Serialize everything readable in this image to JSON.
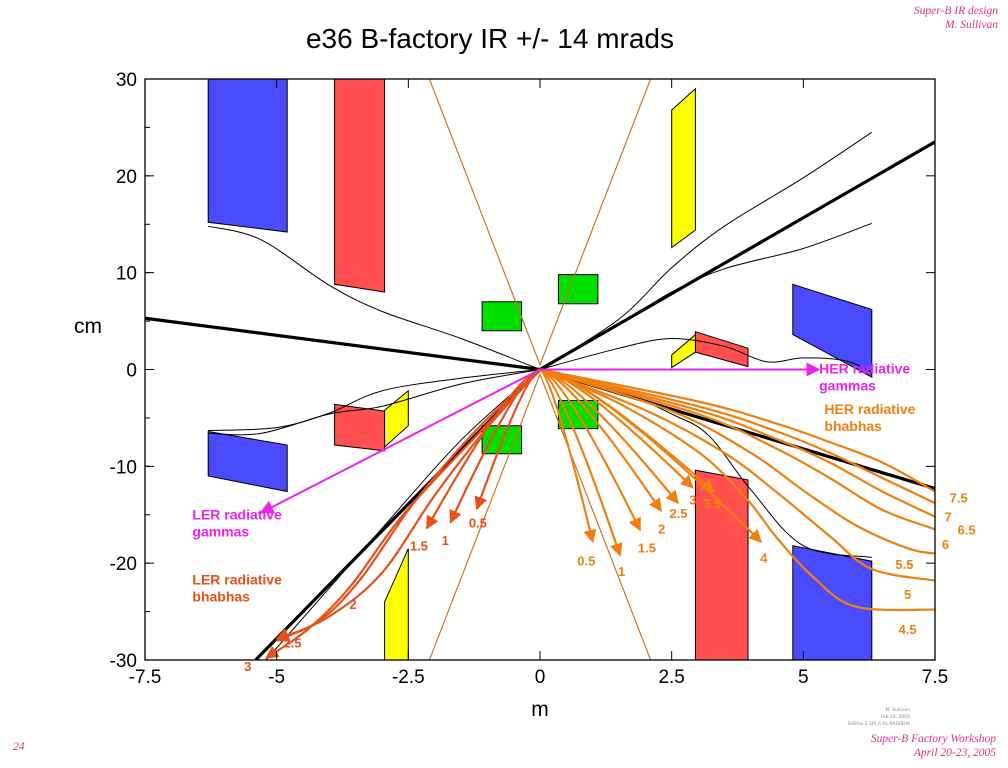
{
  "slide": {
    "header_line1": "Super-B IR design",
    "header_line2": "M. Sullivan",
    "footer_line1": "Super-B Factory Workshop",
    "footer_line2": "April 20-23, 2005",
    "page_number": "24",
    "stamp_lines": [
      "M. Sullivan",
      "Feb 24, 2004",
      "SoBfoe 2 SM_6 RL RAD/BHA"
    ]
  },
  "colors": {
    "quad_blue": "#4a4aff",
    "quad_red": "#ff4f4f",
    "quad_yellow": "#ffff00",
    "quad_green": "#00e000",
    "ler_gammas": "#ee22ee",
    "her_gammas": "#ee22ee",
    "ler_bhabhas": "#e8501a",
    "her_bhabhas": "#f07f10",
    "beam_pipe": "#c87820"
  },
  "chart_data": {
    "type": "diagram",
    "title": "e36 B-factory IR +/- 14 mrads",
    "xlabel": "m",
    "ylabel": "cm",
    "xlim": [
      -7.5,
      7.5
    ],
    "ylim": [
      -30,
      30
    ],
    "xticks": [
      "-7.5",
      "-5",
      "-2.5",
      "0",
      "2.5",
      "5",
      "7.5"
    ],
    "yticks": [
      "30",
      "20",
      "10",
      "0",
      "-10",
      "-20",
      "-30"
    ],
    "xtick_values": [
      -7.5,
      -5,
      -2.5,
      0,
      2.5,
      5,
      7.5
    ],
    "ytick_values": [
      30,
      20,
      10,
      0,
      -10,
      -20,
      -30
    ],
    "magnets": [
      {
        "color": "quad_blue",
        "corners": [
          [
            -6.3,
            30
          ],
          [
            -4.8,
            30
          ],
          [
            -4.8,
            14.2
          ],
          [
            -6.3,
            15.2
          ]
        ]
      },
      {
        "color": "quad_red",
        "corners": [
          [
            -3.9,
            30
          ],
          [
            -2.95,
            30
          ],
          [
            -2.95,
            8
          ],
          [
            -3.9,
            8.8
          ]
        ]
      },
      {
        "color": "quad_yellow",
        "corners": [
          [
            2.5,
            26.8
          ],
          [
            2.95,
            29
          ],
          [
            2.95,
            14.4
          ],
          [
            2.5,
            12.6
          ]
        ]
      },
      {
        "color": "quad_green",
        "corners": [
          [
            -1.1,
            7
          ],
          [
            -0.35,
            7
          ],
          [
            -0.35,
            4
          ],
          [
            -1.1,
            4
          ]
        ]
      },
      {
        "color": "quad_green",
        "corners": [
          [
            0.35,
            9.8
          ],
          [
            1.1,
            9.8
          ],
          [
            1.1,
            6.8
          ],
          [
            0.35,
            6.8
          ]
        ]
      },
      {
        "color": "quad_green",
        "corners": [
          [
            -1.1,
            -5.8
          ],
          [
            -0.35,
            -5.8
          ],
          [
            -0.35,
            -8.7
          ],
          [
            -1.1,
            -8.7
          ]
        ]
      },
      {
        "color": "quad_green",
        "corners": [
          [
            0.35,
            -3.2
          ],
          [
            1.1,
            -3.2
          ],
          [
            1.1,
            -6.1
          ],
          [
            0.35,
            -6.1
          ]
        ]
      },
      {
        "color": "quad_red",
        "corners": [
          [
            2.95,
            3.9
          ],
          [
            3.95,
            2.2
          ],
          [
            3.95,
            0.3
          ],
          [
            2.95,
            1.8
          ]
        ]
      },
      {
        "color": "quad_yellow",
        "corners": [
          [
            2.5,
            1.5
          ],
          [
            2.95,
            3.6
          ],
          [
            2.95,
            1.8
          ],
          [
            2.5,
            0.2
          ]
        ]
      },
      {
        "color": "quad_blue",
        "corners": [
          [
            4.8,
            8.8
          ],
          [
            6.3,
            6.2
          ],
          [
            6.3,
            -0.8
          ],
          [
            4.8,
            3.6
          ]
        ]
      },
      {
        "color": "quad_blue",
        "corners": [
          [
            -6.3,
            -6.4
          ],
          [
            -4.8,
            -7.8
          ],
          [
            -4.8,
            -12.6
          ],
          [
            -6.3,
            -11
          ]
        ]
      },
      {
        "color": "quad_red",
        "corners": [
          [
            -3.9,
            -3.6
          ],
          [
            -2.95,
            -4.3
          ],
          [
            -2.95,
            -8.4
          ],
          [
            -3.9,
            -7.8
          ]
        ]
      },
      {
        "color": "quad_yellow",
        "corners": [
          [
            -2.95,
            -4.2
          ],
          [
            -2.5,
            -2.2
          ],
          [
            -2.5,
            -5.8
          ],
          [
            -2.95,
            -8
          ]
        ]
      },
      {
        "color": "quad_yellow",
        "corners": [
          [
            -2.95,
            -24
          ],
          [
            -2.5,
            -18.5
          ],
          [
            -2.5,
            -30
          ],
          [
            -2.95,
            -30
          ]
        ]
      },
      {
        "color": "quad_red",
        "corners": [
          [
            2.95,
            -10.4
          ],
          [
            3.95,
            -11.4
          ],
          [
            3.95,
            -30
          ],
          [
            2.95,
            -30
          ]
        ]
      },
      {
        "color": "quad_blue",
        "corners": [
          [
            4.8,
            -18.2
          ],
          [
            6.3,
            -19.8
          ],
          [
            6.3,
            -30
          ],
          [
            4.8,
            -30
          ]
        ]
      }
    ],
    "beam_lines": {
      "thick": [
        [
          [
            -7.5,
            5.3
          ],
          [
            0,
            0
          ],
          [
            7.5,
            23.5
          ]
        ],
        [
          [
            -5.4,
            -30
          ],
          [
            0,
            0
          ],
          [
            7.5,
            -12.3
          ]
        ]
      ],
      "thin": [
        [
          [
            -6.3,
            14.8
          ],
          [
            -5.3,
            13.4
          ],
          [
            -4.0,
            8.7
          ],
          [
            -3.0,
            6.0
          ],
          [
            -1.5,
            3.2
          ],
          [
            0,
            0
          ]
        ],
        [
          [
            0,
            0
          ],
          [
            1.5,
            5.2
          ],
          [
            2.5,
            10.5
          ],
          [
            3.5,
            14.8
          ],
          [
            5.0,
            19.8
          ],
          [
            6.3,
            24.5
          ]
        ],
        [
          [
            0,
            0
          ],
          [
            1.5,
            4.6
          ],
          [
            2.5,
            8.0
          ],
          [
            3.5,
            10.4
          ],
          [
            5.0,
            12.5
          ],
          [
            6.3,
            15.1
          ]
        ],
        [
          [
            0,
            0
          ],
          [
            1.5,
            2.2
          ],
          [
            2.5,
            3.2
          ],
          [
            3.5,
            2.4
          ],
          [
            4.3,
            0.8
          ],
          [
            5.0,
            1.2
          ],
          [
            5.8,
            0.9
          ],
          [
            6.3,
            -0.3
          ]
        ],
        [
          [
            -6.3,
            -6.3
          ],
          [
            -5.0,
            -6.0
          ],
          [
            -4.0,
            -4.5
          ],
          [
            -3.0,
            -2.2
          ],
          [
            -1.5,
            -0.9
          ],
          [
            0,
            0
          ]
        ],
        [
          [
            -6.3,
            -6.6
          ],
          [
            -5.3,
            -6.6
          ],
          [
            -4.0,
            -4.6
          ],
          [
            -3.0,
            -3.8
          ],
          [
            -1.5,
            -1.5
          ],
          [
            0,
            0
          ]
        ],
        [
          [
            -5.2,
            -30
          ],
          [
            -3.0,
            -16.4
          ],
          [
            -1.5,
            -7.3
          ],
          [
            0,
            0
          ]
        ],
        [
          [
            0,
            0
          ],
          [
            1.5,
            -2.2
          ],
          [
            2.5,
            -4.6
          ],
          [
            3.2,
            -6.8
          ],
          [
            4.0,
            -12.4
          ],
          [
            5.0,
            -18.2
          ],
          [
            6.3,
            -19.4
          ]
        ]
      ],
      "cone": [
        [
          [
            -2.1,
            30
          ],
          [
            0,
            0.5
          ],
          [
            2.1,
            30
          ]
        ],
        [
          [
            -2.1,
            -30
          ],
          [
            0,
            -0.5
          ],
          [
            2.1,
            -30
          ]
        ]
      ]
    },
    "her_radiative_gammas": {
      "from": [
        0,
        0
      ],
      "to": [
        5.3,
        0
      ],
      "label": "HER radiative\ngammas",
      "label_at": [
        5.3,
        -0.4
      ]
    },
    "ler_radiative_gammas": {
      "from": [
        0,
        0
      ],
      "to": [
        -5.3,
        -14.8
      ],
      "label": "LER radiative\ngammas",
      "label_at": [
        -6.6,
        -15.5
      ]
    },
    "her_radiative_bhabhas_label": {
      "text": "HER radiative\nbhabhas",
      "at": [
        5.4,
        -4.6
      ]
    },
    "ler_radiative_bhabhas_label": {
      "text": "LER radiative\nbhabhas",
      "at": [
        -6.6,
        -22.2
      ]
    },
    "her_bhabhas": [
      {
        "label": "0.5",
        "end": [
          1.0,
          -17.8
        ],
        "label_at": [
          0.88,
          -19.7
        ]
      },
      {
        "label": "1",
        "end": [
          1.52,
          -19.2
        ],
        "label_at": [
          1.55,
          -20.8
        ]
      },
      {
        "label": "1.5",
        "end": [
          1.9,
          -16.6
        ],
        "label_at": [
          2.03,
          -18.4
        ]
      },
      {
        "label": "2",
        "end": [
          2.3,
          -14.6
        ],
        "label_at": [
          2.31,
          -16.4
        ]
      },
      {
        "label": "2.5",
        "end": [
          2.62,
          -13.8
        ],
        "label_at": [
          2.63,
          -14.8
        ]
      },
      {
        "label": "3",
        "end": [
          2.9,
          -12.2
        ],
        "label_at": [
          2.9,
          -13.4
        ]
      },
      {
        "label": "3.5",
        "end": [
          3.3,
          -12.6
        ],
        "label_at": [
          3.27,
          -13.8
        ]
      },
      {
        "label": "4",
        "end": [
          4.2,
          -17.8
        ],
        "label_at": [
          4.25,
          -19.4
        ]
      },
      {
        "label": "4.5",
        "path": [
          [
            0,
            0
          ],
          [
            1.5,
            -3.5
          ],
          [
            3.0,
            -8.5
          ],
          [
            3.9,
            -13.2
          ],
          [
            4.5,
            -17.4
          ],
          [
            5.2,
            -21.5
          ],
          [
            6.0,
            -24.5
          ],
          [
            7.5,
            -24.8
          ]
        ],
        "label_at": [
          6.98,
          -26.8
        ]
      },
      {
        "label": "5",
        "path": [
          [
            0,
            0
          ],
          [
            2.0,
            -4.2
          ],
          [
            3.5,
            -8.6
          ],
          [
            4.5,
            -12.7
          ],
          [
            5.5,
            -17.2
          ],
          [
            6.3,
            -20.6
          ],
          [
            7.5,
            -21.8
          ]
        ],
        "label_at": [
          6.98,
          -23.2
        ]
      },
      {
        "label": "5.5",
        "path": [
          [
            0,
            0
          ],
          [
            2.5,
            -4.3
          ],
          [
            4.0,
            -8.6
          ],
          [
            5.0,
            -12.5
          ],
          [
            6.0,
            -16.1
          ],
          [
            7.0,
            -18.5
          ],
          [
            7.5,
            -19.0
          ]
        ],
        "label_at": [
          6.92,
          -20.1
        ]
      },
      {
        "label": "6",
        "path": [
          [
            0,
            0
          ],
          [
            3.0,
            -4.6
          ],
          [
            4.5,
            -8.2
          ],
          [
            5.5,
            -11.2
          ],
          [
            6.5,
            -14.5
          ],
          [
            7.5,
            -16.5
          ]
        ],
        "label_at": [
          7.7,
          -18.0
        ]
      },
      {
        "label": "6.5",
        "path": [
          [
            0,
            0
          ],
          [
            3.0,
            -4.2
          ],
          [
            4.5,
            -7.2
          ],
          [
            5.5,
            -9.6
          ],
          [
            6.5,
            -12.6
          ],
          [
            7.5,
            -15.2
          ]
        ],
        "label_at": [
          8.1,
          -16.5
        ]
      },
      {
        "label": "7",
        "path": [
          [
            0,
            0
          ],
          [
            3.0,
            -3.8
          ],
          [
            4.5,
            -6.4
          ],
          [
            5.5,
            -8.6
          ],
          [
            6.5,
            -11.2
          ],
          [
            7.5,
            -13.8
          ]
        ],
        "label_at": [
          7.75,
          -15.2
        ]
      },
      {
        "label": "7.5",
        "path": [
          [
            0,
            0
          ],
          [
            3.0,
            -3.3
          ],
          [
            4.5,
            -5.6
          ],
          [
            5.5,
            -7.5
          ],
          [
            6.5,
            -9.6
          ],
          [
            7.5,
            -12.6
          ]
        ],
        "label_at": [
          7.95,
          -13.2
        ]
      }
    ],
    "ler_bhabhas": [
      {
        "label": "0.5",
        "end": [
          -1.2,
          -14.4
        ],
        "label_at": [
          -1.18,
          -15.8
        ]
      },
      {
        "label": "1",
        "end": [
          -1.7,
          -15.8
        ],
        "label_at": [
          -1.8,
          -17.6
        ]
      },
      {
        "label": "1.5",
        "end": [
          -2.15,
          -16.4
        ],
        "label_at": [
          -2.3,
          -18.2
        ]
      },
      {
        "label": "2",
        "path": [
          [
            0,
            0
          ],
          [
            -1.0,
            -6.0
          ],
          [
            -2.0,
            -13.0
          ],
          [
            -3.0,
            -21.0
          ],
          [
            -4.0,
            -25.5
          ],
          [
            -5.0,
            -28.0
          ]
        ],
        "label_at": [
          -3.55,
          -24.2
        ]
      },
      {
        "label": "2.5",
        "path": [
          [
            0,
            0
          ],
          [
            -1.2,
            -6.2
          ],
          [
            -2.4,
            -13.8
          ],
          [
            -3.4,
            -21.6
          ],
          [
            -4.2,
            -26.0
          ],
          [
            -5.0,
            -27.8
          ]
        ],
        "label_at": [
          -4.7,
          -28.2
        ]
      },
      {
        "label": "3",
        "path": [
          [
            0,
            0
          ],
          [
            -1.2,
            -6.8
          ],
          [
            -2.6,
            -15.0
          ],
          [
            -3.6,
            -22.4
          ],
          [
            -4.4,
            -26.8
          ],
          [
            -5.2,
            -29.8
          ]
        ],
        "label_at": [
          -5.55,
          -30.6
        ]
      }
    ]
  }
}
